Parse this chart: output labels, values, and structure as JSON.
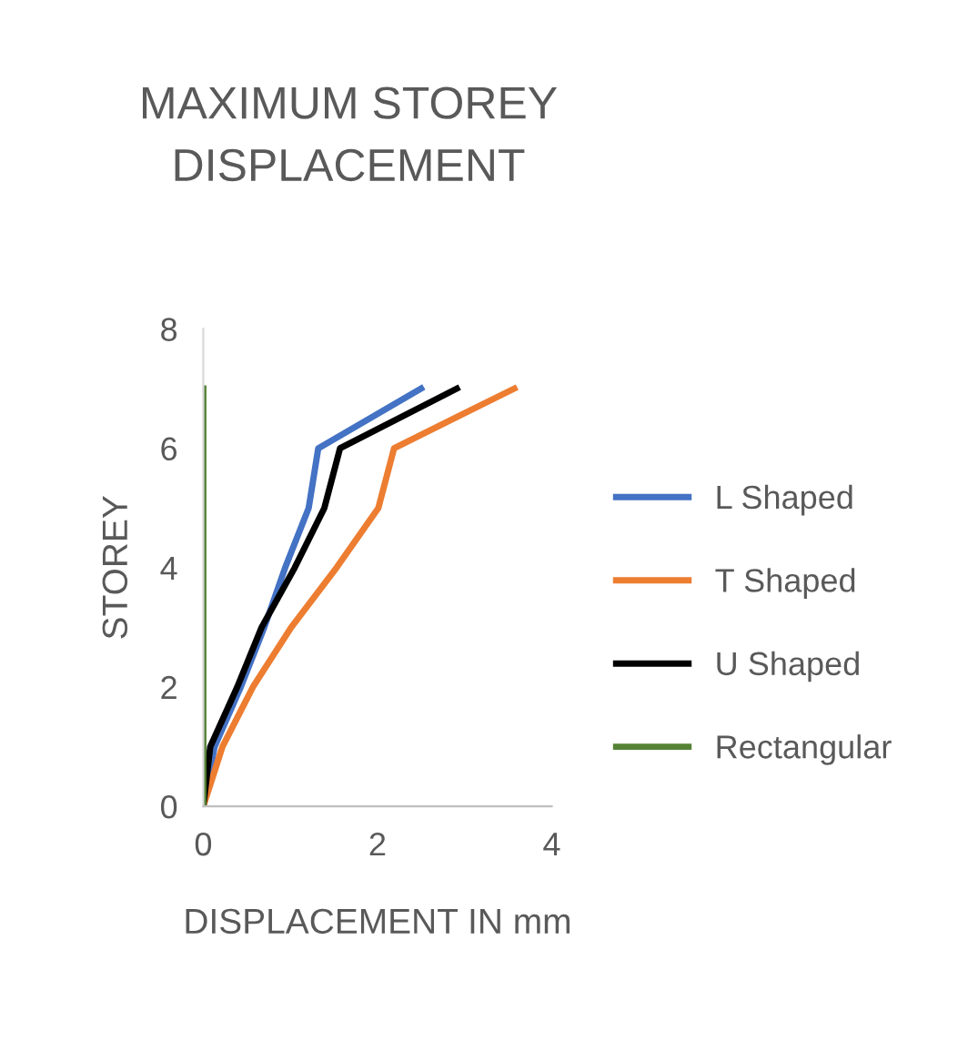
{
  "chart_data": {
    "type": "line",
    "title": "MAXIMUM STOREY\nDISPLACEMENT",
    "xlabel": "DISPLACEMENT IN mm",
    "ylabel": "STOREY",
    "xlim": [
      0,
      4
    ],
    "xticks": [
      0,
      2,
      4
    ],
    "ylim": [
      0,
      8
    ],
    "yticks": [
      0,
      2,
      4,
      6,
      8
    ],
    "grid": false,
    "legend": "right",
    "marker": "none",
    "line_style": "solid",
    "series": [
      {
        "name": "L Shaped",
        "color": "#4472c4",
        "x": [
          0,
          0.13,
          0.43,
          0.7,
          0.94,
          1.21,
          1.32,
          2.5
        ],
        "values": [
          0,
          1,
          2,
          3,
          4,
          5,
          6,
          7
        ]
      },
      {
        "name": "T Shaped",
        "color": "#ed7d31",
        "x": [
          0,
          0.22,
          0.57,
          1.01,
          1.53,
          2.01,
          2.19,
          3.57
        ],
        "values": [
          0,
          1,
          2,
          3,
          4,
          5,
          6,
          7
        ]
      },
      {
        "name": "U Shaped",
        "color": "#000000",
        "x": [
          0,
          0.08,
          0.39,
          0.67,
          1.05,
          1.39,
          1.57,
          2.91
        ],
        "values": [
          0,
          1,
          2,
          3,
          4,
          5,
          6,
          7
        ]
      },
      {
        "name": "Rectangular",
        "color": "#548235",
        "x": [
          0,
          0,
          0,
          0,
          0,
          0,
          0,
          0
        ],
        "values": [
          0,
          1,
          2,
          3,
          4,
          5,
          6,
          7
        ]
      }
    ]
  }
}
